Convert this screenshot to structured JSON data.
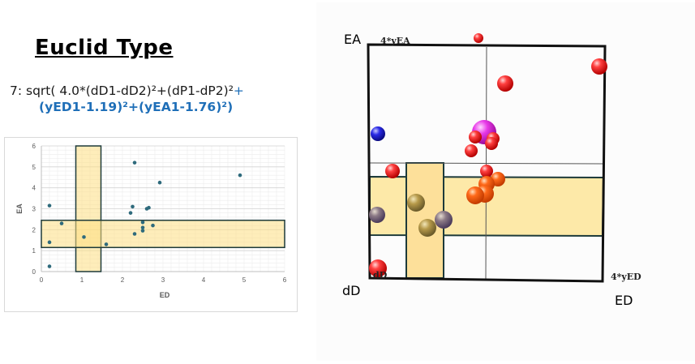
{
  "header": {
    "title": "Euclid Type",
    "formula_line1_black": "7: sqrt( 4.0*(dD1-dD2)²+(dP1-dP2)²",
    "formula_line1_blue": "+",
    "formula_line2": "(yED1-1.19)²+(yEA1-1.76)²)"
  },
  "colors": {
    "highlight_fill": "#fde9a8",
    "highlight_stroke": "#1d3a3a",
    "point": "#2e6a7c",
    "formula_blue": "#1f6fb8"
  },
  "chart_data": [
    {
      "type": "scatter",
      "xlabel": "ED",
      "ylabel": "EA",
      "xlim": [
        0,
        6
      ],
      "ylim": [
        0,
        6
      ],
      "xticks": [
        "0",
        "1",
        "2",
        "3",
        "4",
        "5",
        "6"
      ],
      "yticks": [
        "0",
        "1",
        "2",
        "3",
        "4",
        "5",
        "6"
      ],
      "grid": true,
      "highlight_bands": [
        {
          "axis": "x",
          "from": 0.85,
          "to": 1.47
        },
        {
          "axis": "y",
          "from": 1.15,
          "to": 2.45
        }
      ],
      "points": [
        {
          "x": 0.2,
          "y": 0.25
        },
        {
          "x": 0.2,
          "y": 1.4
        },
        {
          "x": 0.2,
          "y": 3.15
        },
        {
          "x": 0.5,
          "y": 2.3
        },
        {
          "x": 1.05,
          "y": 1.65
        },
        {
          "x": 1.6,
          "y": 1.3
        },
        {
          "x": 2.2,
          "y": 2.8
        },
        {
          "x": 2.25,
          "y": 3.1
        },
        {
          "x": 2.3,
          "y": 5.2
        },
        {
          "x": 2.3,
          "y": 1.8
        },
        {
          "x": 2.5,
          "y": 2.35
        },
        {
          "x": 2.5,
          "y": 1.95
        },
        {
          "x": 2.5,
          "y": 2.1
        },
        {
          "x": 2.6,
          "y": 3.0
        },
        {
          "x": 2.65,
          "y": 3.05
        },
        {
          "x": 2.75,
          "y": 2.2
        },
        {
          "x": 2.92,
          "y": 4.25
        },
        {
          "x": 4.9,
          "y": 4.6
        }
      ]
    }
  ],
  "model": {
    "axis_ea": "EA",
    "axis_dd": "dD",
    "axis_ed": "ED",
    "label_4yea": "4*yEA",
    "label_4yed": "4*yED",
    "label_dd_small": "dD"
  }
}
